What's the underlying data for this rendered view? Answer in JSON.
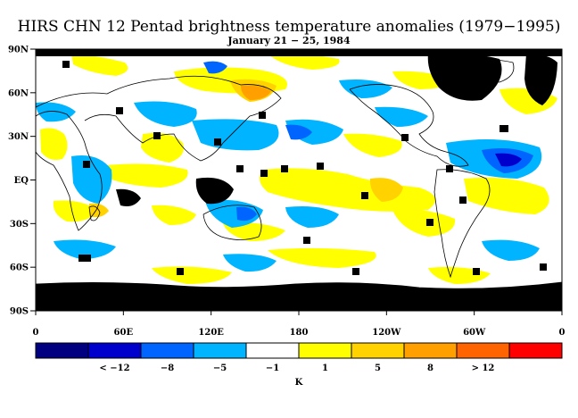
{
  "title": "HIRS CHN 12 Pentad brightness temperature anomalies (1979−1995)",
  "subtitle": "January 21 − 25, 1984",
  "map": {
    "lat_ticks": [
      "90N",
      "60N",
      "30N",
      "EQ",
      "30S",
      "60S",
      "90S"
    ],
    "lon_ticks": [
      "0",
      "60E",
      "120E",
      "180",
      "120W",
      "60W",
      "0"
    ],
    "missing_color": "#000000",
    "coastline_color": "#000000"
  },
  "colorbar": {
    "unit": "K",
    "colors": [
      "#000080",
      "#0000cd",
      "#0064ff",
      "#00b4ff",
      "#ffffff",
      "#ffff00",
      "#ffd200",
      "#ffa000",
      "#ff6400",
      "#ff0000"
    ],
    "labels": [
      "< −12",
      "−8",
      "−5",
      "−1",
      "1",
      "5",
      "8",
      "> 12"
    ]
  }
}
